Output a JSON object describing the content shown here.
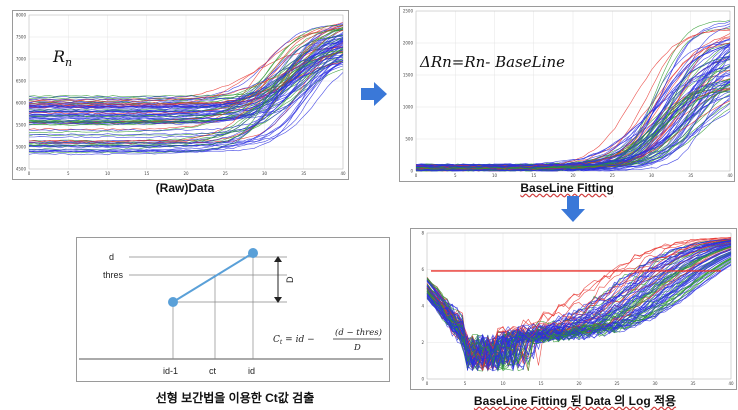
{
  "panels": {
    "raw": {
      "formula": "Rn",
      "formula_base": "R",
      "formula_sub": "n",
      "caption": "(Raw)Data",
      "y_ticks": [
        "8000",
        "7500",
        "7000",
        "6500",
        "6000",
        "5500",
        "5000",
        "4500"
      ],
      "x_ticks": [
        "0",
        "5",
        "10",
        "15",
        "20",
        "25",
        "30",
        "35",
        "40"
      ]
    },
    "baseline": {
      "formula": "ΔRn=Rn- BaseLine",
      "caption": "BaseLine Fitting",
      "y_ticks": [
        "2500",
        "2000",
        "1500",
        "1000",
        "500",
        "0"
      ],
      "x_ticks": [
        "0",
        "5",
        "10",
        "15",
        "20",
        "25",
        "30",
        "35",
        "40"
      ]
    },
    "log": {
      "caption": "BaseLine Fitting 된 Data 의 Log 적용",
      "y_ticks": [
        "8",
        "6",
        "4",
        "2",
        "0"
      ],
      "x_ticks": [
        "0",
        "5",
        "10",
        "15",
        "20",
        "25",
        "30",
        "35",
        "40"
      ]
    },
    "interp": {
      "caption": "선형 보간법을 이용한 Ct값 검출",
      "labels": {
        "d": "d",
        "thres": "thres",
        "D": "D",
        "x1": "id-1",
        "x2": "ct",
        "x3": "id"
      },
      "formula": "Ct = id − (d − thres) / D"
    }
  },
  "colors": {
    "red": "#e8302a",
    "green": "#2e9a2e",
    "blue": "#2b2fe0",
    "arrow": "#3a78d8",
    "interp_line": "#5aa0d8"
  }
}
